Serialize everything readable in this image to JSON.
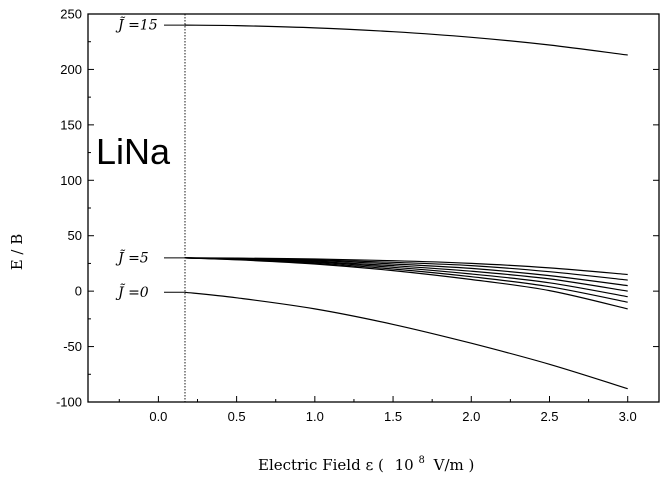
{
  "chart_data": {
    "type": "line",
    "title": "",
    "xlabel": "Electric Field ε ( 10^8 V/m )",
    "xlabel_parts": {
      "main": "Electric Field ε (",
      "power_base": "10",
      "exponent": "8",
      "unit": "V/m )"
    },
    "ylabel": "E / B",
    "xlim": [
      -0.45,
      3.2
    ],
    "ylim": [
      -100,
      250
    ],
    "xticks": [
      0.0,
      0.5,
      1.0,
      1.5,
      2.0,
      2.5,
      3.0
    ],
    "xtick_labels": [
      "0.0",
      "0.5",
      "1.0",
      "1.5",
      "2.0",
      "2.5",
      "3.0"
    ],
    "yticks": [
      -100,
      -50,
      0,
      50,
      100,
      150,
      200,
      250
    ],
    "ytick_labels": [
      "-100",
      "-50",
      "0",
      "50",
      "100",
      "150",
      "200",
      "250"
    ],
    "grid": false,
    "annotation_text": "LiNa",
    "reference_line_x": 0.17,
    "curve_labels": [
      {
        "text": "J̃ =15",
        "series": "J15"
      },
      {
        "text": "J̃ =5",
        "series": "J5"
      },
      {
        "text": "J̃ =0",
        "series": "J0"
      }
    ],
    "series": [
      {
        "id": "J15",
        "x": [
          0.17,
          0.5,
          1.0,
          1.5,
          2.0,
          2.5,
          3.0
        ],
        "y": [
          240,
          239.5,
          237.5,
          234,
          229,
          222,
          213
        ]
      },
      {
        "id": "J5a",
        "x": [
          0.17,
          0.5,
          1.0,
          1.5,
          2.0,
          2.5,
          3.0
        ],
        "y": [
          30,
          29.8,
          29,
          27.5,
          25,
          21,
          15
        ]
      },
      {
        "id": "J5b",
        "x": [
          0.17,
          0.5,
          1.0,
          1.5,
          2.0,
          2.5,
          3.0
        ],
        "y": [
          30,
          29.5,
          28.2,
          26,
          23,
          17.5,
          10
        ]
      },
      {
        "id": "J5c",
        "x": [
          0.17,
          0.5,
          1.0,
          1.5,
          2.0,
          2.5,
          3.0
        ],
        "y": [
          30,
          29.3,
          27.5,
          24.5,
          20.5,
          14,
          5
        ]
      },
      {
        "id": "J5d",
        "x": [
          0.17,
          0.5,
          1.0,
          1.5,
          2.0,
          2.5,
          3.0
        ],
        "y": [
          30,
          29,
          26.7,
          23,
          18,
          11,
          0
        ]
      },
      {
        "id": "J5e",
        "x": [
          0.17,
          0.5,
          1.0,
          1.5,
          2.0,
          2.5,
          3.0
        ],
        "y": [
          30,
          28.8,
          26,
          21.5,
          15.5,
          7.5,
          -5
        ]
      },
      {
        "id": "J5f",
        "x": [
          0.17,
          0.5,
          1.0,
          1.5,
          2.0,
          2.5,
          3.0
        ],
        "y": [
          30,
          28.5,
          25.2,
          20,
          13,
          4,
          -10
        ]
      },
      {
        "id": "J5",
        "x": [
          0.17,
          0.5,
          1.0,
          1.5,
          2.0,
          2.5,
          3.0
        ],
        "y": [
          30,
          28.3,
          24.5,
          18.5,
          10.5,
          0.5,
          -16
        ]
      },
      {
        "id": "J0",
        "x": [
          0.17,
          0.5,
          1.0,
          1.5,
          2.0,
          2.5,
          3.0
        ],
        "y": [
          -1,
          -6,
          -16,
          -30,
          -47,
          -66,
          -88
        ]
      }
    ]
  }
}
